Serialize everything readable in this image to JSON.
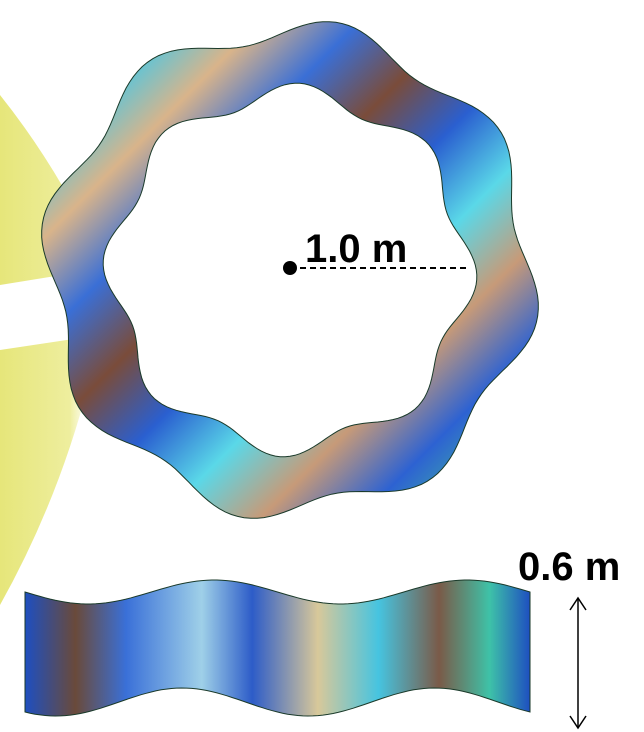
{
  "labels": {
    "radius": "1.0 m",
    "height": "0.6 m"
  }
}
